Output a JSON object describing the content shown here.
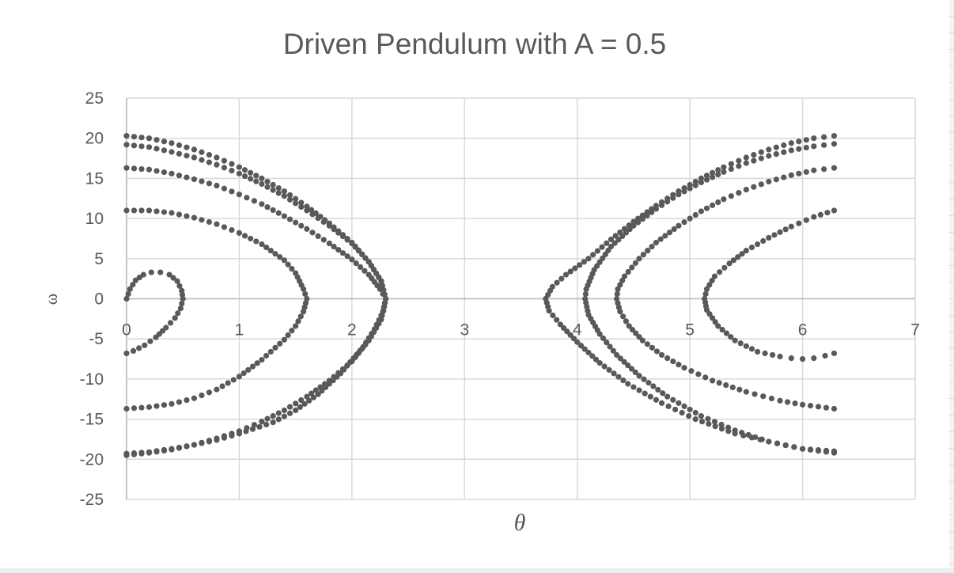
{
  "chart_data": {
    "type": "scatter",
    "title": "Driven Pendulum with A =  0.5",
    "xlabel": "θ",
    "ylabel": "ω",
    "xlim": [
      0,
      7
    ],
    "ylim": [
      -25,
      25
    ],
    "x_ticks": [
      "0",
      "1",
      "2",
      "3",
      "4",
      "5",
      "6",
      "7"
    ],
    "y_ticks": [
      "25",
      "20",
      "15",
      "10",
      "5",
      "0",
      "-5",
      "-10",
      "-15",
      "-20",
      "-25"
    ],
    "grid": true,
    "legend": "none",
    "marker_color": "#595959",
    "series": [
      {
        "points": [
          [
            0.0,
            0.0
          ],
          [
            0.03,
            1.2
          ],
          [
            0.08,
            2.3
          ],
          [
            0.15,
            3.0
          ],
          [
            0.22,
            3.3
          ],
          [
            0.3,
            3.3
          ],
          [
            0.38,
            3.0
          ],
          [
            0.45,
            2.2
          ],
          [
            0.49,
            1.0
          ],
          [
            0.5,
            0.0
          ],
          [
            0.48,
            -1.2
          ],
          [
            0.43,
            -2.4
          ],
          [
            0.35,
            -3.6
          ],
          [
            0.26,
            -4.8
          ],
          [
            0.16,
            -5.8
          ],
          [
            0.06,
            -6.5
          ],
          [
            0.0,
            -6.8
          ]
        ]
      },
      {
        "points": [
          [
            0.0,
            11.0
          ],
          [
            0.2,
            11.0
          ],
          [
            0.4,
            10.7
          ],
          [
            0.6,
            10.1
          ],
          [
            0.8,
            9.3
          ],
          [
            1.0,
            8.2
          ],
          [
            1.2,
            6.8
          ],
          [
            1.4,
            4.8
          ],
          [
            1.5,
            3.2
          ],
          [
            1.57,
            1.2
          ],
          [
            1.6,
            0.0
          ],
          [
            1.57,
            -1.6
          ],
          [
            1.5,
            -3.4
          ],
          [
            1.4,
            -5.1
          ],
          [
            1.2,
            -7.6
          ],
          [
            1.0,
            -9.7
          ],
          [
            0.8,
            -11.3
          ],
          [
            0.6,
            -12.4
          ],
          [
            0.4,
            -13.1
          ],
          [
            0.2,
            -13.5
          ],
          [
            0.0,
            -13.7
          ]
        ]
      },
      {
        "points": [
          [
            0.0,
            16.3
          ],
          [
            0.2,
            16.1
          ],
          [
            0.4,
            15.6
          ],
          [
            0.6,
            14.9
          ],
          [
            0.8,
            14.1
          ],
          [
            1.0,
            13.0
          ],
          [
            1.2,
            11.8
          ],
          [
            1.4,
            10.3
          ],
          [
            1.6,
            8.7
          ],
          [
            1.8,
            6.9
          ],
          [
            2.0,
            4.9
          ],
          [
            2.15,
            3.0
          ],
          [
            2.25,
            1.2
          ],
          [
            2.3,
            0.0
          ],
          [
            2.28,
            -1.5
          ],
          [
            2.2,
            -3.8
          ],
          [
            2.1,
            -6.0
          ],
          [
            1.9,
            -9.3
          ],
          [
            1.7,
            -11.9
          ],
          [
            1.5,
            -13.9
          ],
          [
            1.3,
            -15.4
          ],
          [
            1.0,
            -16.8
          ],
          [
            0.8,
            -17.6
          ],
          [
            0.6,
            -18.2
          ],
          [
            0.4,
            -18.7
          ],
          [
            0.2,
            -19.1
          ],
          [
            0.0,
            -19.3
          ]
        ]
      },
      {
        "points": [
          [
            0.0,
            19.2
          ],
          [
            0.2,
            18.9
          ],
          [
            0.4,
            18.3
          ],
          [
            0.6,
            17.6
          ],
          [
            0.8,
            16.7
          ],
          [
            1.0,
            15.6
          ],
          [
            1.2,
            14.3
          ],
          [
            1.4,
            12.8
          ],
          [
            1.6,
            11.0
          ],
          [
            1.8,
            9.1
          ],
          [
            2.0,
            6.9
          ],
          [
            2.15,
            4.6
          ],
          [
            2.26,
            2.2
          ],
          [
            2.3,
            0.0
          ],
          [
            2.26,
            -2.6
          ],
          [
            2.15,
            -5.2
          ],
          [
            2.0,
            -7.8
          ],
          [
            1.8,
            -10.2
          ],
          [
            1.6,
            -12.2
          ],
          [
            1.4,
            -13.9
          ],
          [
            1.2,
            -15.3
          ],
          [
            1.0,
            -16.5
          ],
          [
            0.8,
            -17.4
          ],
          [
            0.6,
            -18.2
          ],
          [
            0.4,
            -18.8
          ],
          [
            0.2,
            -19.2
          ],
          [
            0.0,
            -19.5
          ]
        ]
      },
      {
        "points": [
          [
            0.0,
            20.3
          ],
          [
            0.2,
            20.0
          ],
          [
            0.4,
            19.4
          ],
          [
            0.6,
            18.6
          ],
          [
            0.8,
            17.6
          ],
          [
            1.0,
            16.4
          ],
          [
            1.2,
            15.0
          ],
          [
            1.4,
            13.4
          ],
          [
            1.6,
            11.5
          ],
          [
            1.8,
            9.4
          ],
          [
            2.0,
            7.0
          ],
          [
            2.15,
            4.6
          ],
          [
            2.26,
            2.2
          ],
          [
            2.3,
            0.0
          ]
        ]
      },
      {
        "points": [
          [
            6.28,
            -6.8
          ],
          [
            6.2,
            -7.1
          ],
          [
            6.1,
            -7.4
          ],
          [
            6.0,
            -7.5
          ],
          [
            5.9,
            -7.4
          ],
          [
            5.8,
            -7.2
          ],
          [
            5.6,
            -6.6
          ],
          [
            5.4,
            -5.2
          ],
          [
            5.25,
            -3.4
          ],
          [
            5.15,
            -1.4
          ],
          [
            5.13,
            0.0
          ],
          [
            5.15,
            1.2
          ],
          [
            5.22,
            2.8
          ],
          [
            5.35,
            4.4
          ],
          [
            5.5,
            6.0
          ],
          [
            5.7,
            7.6
          ],
          [
            5.9,
            9.0
          ],
          [
            6.1,
            10.2
          ],
          [
            6.28,
            11.0
          ]
        ]
      },
      {
        "points": [
          [
            6.28,
            16.3
          ],
          [
            6.1,
            16.0
          ],
          [
            5.9,
            15.4
          ],
          [
            5.7,
            14.6
          ],
          [
            5.5,
            13.6
          ],
          [
            5.3,
            12.4
          ],
          [
            5.1,
            10.9
          ],
          [
            4.9,
            9.1
          ],
          [
            4.7,
            7.0
          ],
          [
            4.55,
            5.0
          ],
          [
            4.42,
            2.8
          ],
          [
            4.36,
            1.2
          ],
          [
            4.35,
            0.0
          ],
          [
            4.38,
            -1.6
          ],
          [
            4.46,
            -3.4
          ],
          [
            4.58,
            -5.2
          ],
          [
            4.75,
            -7.0
          ],
          [
            4.95,
            -8.6
          ],
          [
            5.2,
            -10.2
          ],
          [
            5.5,
            -11.6
          ],
          [
            5.8,
            -12.7
          ],
          [
            6.0,
            -13.2
          ],
          [
            6.28,
            -13.7
          ]
        ]
      },
      {
        "points": [
          [
            6.28,
            19.3
          ],
          [
            6.1,
            19.0
          ],
          [
            5.9,
            18.5
          ],
          [
            5.7,
            17.8
          ],
          [
            5.5,
            16.9
          ],
          [
            5.3,
            15.8
          ],
          [
            5.1,
            14.5
          ],
          [
            4.9,
            13.0
          ],
          [
            4.7,
            11.2
          ],
          [
            4.5,
            9.1
          ],
          [
            4.3,
            6.5
          ],
          [
            4.15,
            3.6
          ],
          [
            4.08,
            1.2
          ],
          [
            4.07,
            0.0
          ],
          [
            4.1,
            -2.0
          ],
          [
            4.2,
            -4.4
          ],
          [
            4.35,
            -7.0
          ],
          [
            4.55,
            -9.6
          ],
          [
            4.8,
            -12.2
          ],
          [
            5.1,
            -14.6
          ],
          [
            5.4,
            -16.4
          ],
          [
            5.7,
            -17.8
          ],
          [
            6.0,
            -18.7
          ],
          [
            6.28,
            -19.2
          ]
        ]
      },
      {
        "points": [
          [
            6.28,
            20.3
          ],
          [
            6.1,
            20.0
          ],
          [
            5.9,
            19.4
          ],
          [
            5.7,
            18.6
          ],
          [
            5.5,
            17.6
          ],
          [
            5.3,
            16.4
          ],
          [
            5.1,
            15.0
          ],
          [
            4.9,
            13.4
          ],
          [
            4.7,
            11.6
          ],
          [
            4.5,
            9.6
          ],
          [
            4.3,
            7.4
          ],
          [
            4.1,
            5.0
          ],
          [
            3.9,
            3.0
          ],
          [
            3.78,
            1.5
          ],
          [
            3.72,
            0.0
          ],
          [
            3.75,
            -1.5
          ],
          [
            3.85,
            -3.2
          ],
          [
            4.0,
            -5.4
          ],
          [
            4.2,
            -8.0
          ],
          [
            4.45,
            -10.6
          ],
          [
            4.75,
            -13.0
          ],
          [
            5.05,
            -15.0
          ],
          [
            5.4,
            -16.8
          ],
          [
            5.7,
            -17.8
          ],
          [
            6.0,
            -18.7
          ],
          [
            6.28,
            -19.0
          ]
        ]
      }
    ]
  }
}
